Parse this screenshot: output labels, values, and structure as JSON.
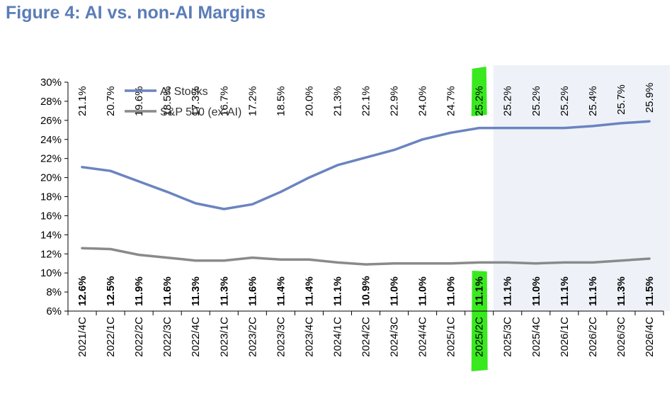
{
  "title": "Figure 4: AI vs. non-AI Margins",
  "colors": {
    "title": "#5b7db8",
    "ai_line": "#6b84c0",
    "sp_line": "#8a8a8a",
    "forecast_shade": "#eef2f8",
    "highlight": "#39e81f"
  },
  "chart_data": {
    "type": "line",
    "title": "",
    "xlabel": "",
    "ylabel": "",
    "ylim": [
      6,
      30
    ],
    "yticks": [
      6,
      8,
      10,
      12,
      14,
      16,
      18,
      20,
      22,
      24,
      26,
      28,
      30
    ],
    "ytick_labels": [
      "6%",
      "8%",
      "10%",
      "12%",
      "14%",
      "16%",
      "18%",
      "20%",
      "22%",
      "24%",
      "26%",
      "28%",
      "30%"
    ],
    "categories": [
      "2021/4C",
      "2022/1C",
      "2022/2C",
      "2022/3C",
      "2022/4C",
      "2023/1C",
      "2023/2C",
      "2023/3C",
      "2023/4C",
      "2024/1C",
      "2024/2C",
      "2024/3C",
      "2024/4C",
      "2025/1C",
      "2025/2C",
      "2025/3C",
      "2025/4C",
      "2026/1C",
      "2026/2C",
      "2026/3C",
      "2026/4C"
    ],
    "highlighted_category": "2025/2C",
    "forecast_start_category": "2025/3C",
    "grid": false,
    "legend_position": "top-left",
    "series": [
      {
        "name": "AI Stocks",
        "values": [
          21.1,
          20.7,
          19.6,
          18.5,
          17.3,
          16.7,
          17.2,
          18.5,
          20.0,
          21.3,
          22.1,
          22.9,
          24.0,
          24.7,
          25.2,
          25.2,
          25.2,
          25.2,
          25.4,
          25.7,
          25.9
        ],
        "labels": [
          "21.1%",
          "20.7%",
          "19.6%",
          "18.5%",
          "17.3%",
          "16.7%",
          "17.2%",
          "18.5%",
          "20.0%",
          "21.3%",
          "22.1%",
          "22.9%",
          "24.0%",
          "24.7%",
          "25.2%",
          "25.2%",
          "25.2%",
          "25.2%",
          "25.4%",
          "25.7%",
          "25.9%"
        ]
      },
      {
        "name": "S&P 500 (ex-AI)",
        "values": [
          12.6,
          12.5,
          11.9,
          11.6,
          11.3,
          11.3,
          11.6,
          11.4,
          11.4,
          11.1,
          10.9,
          11.0,
          11.0,
          11.0,
          11.1,
          11.1,
          11.0,
          11.1,
          11.1,
          11.3,
          11.5
        ],
        "labels": [
          "12.6%",
          "12.5%",
          "11.9%",
          "11.6%",
          "11.3%",
          "11.3%",
          "11.6%",
          "11.4%",
          "11.4%",
          "11.1%",
          "10.9%",
          "11.0%",
          "11.0%",
          "11.0%",
          "11.1%",
          "11.1%",
          "11.0%",
          "11.1%",
          "11.1%",
          "11.3%",
          "11.5%"
        ]
      }
    ]
  }
}
